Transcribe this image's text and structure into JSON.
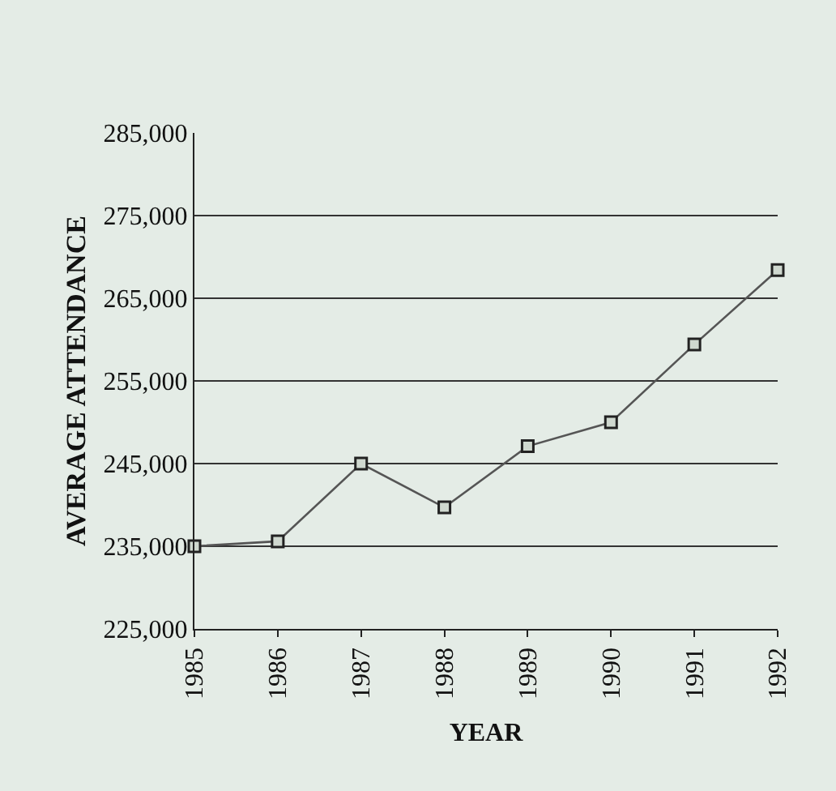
{
  "chart_data": {
    "type": "line",
    "xlabel": "YEAR",
    "ylabel": "AVERAGE ATTENDANCE",
    "x": [
      1985,
      1986,
      1987,
      1988,
      1989,
      1990,
      1991,
      1992
    ],
    "series": [
      {
        "color": "#555555",
        "values": [
          235000,
          235600,
          245000,
          239700,
          247100,
          250000,
          259400,
          268400
        ]
      }
    ],
    "xlim": [
      1985,
      1992
    ],
    "xticks": [
      1985,
      1986,
      1987,
      1988,
      1989,
      1990,
      1991,
      1992
    ],
    "ylim": [
      225000,
      285000
    ],
    "yticks": [
      {
        "value": 225000,
        "label": "225,000"
      },
      {
        "value": 235000,
        "label": "235,000"
      },
      {
        "value": 245000,
        "label": "245,000"
      },
      {
        "value": 255000,
        "label": "255,000"
      },
      {
        "value": 265000,
        "label": "265,000"
      },
      {
        "value": 275000,
        "label": "275,000"
      },
      {
        "value": 285000,
        "label": "285,000"
      }
    ],
    "grid": "y",
    "legend": false,
    "marker": "square",
    "line_style": "solid"
  }
}
